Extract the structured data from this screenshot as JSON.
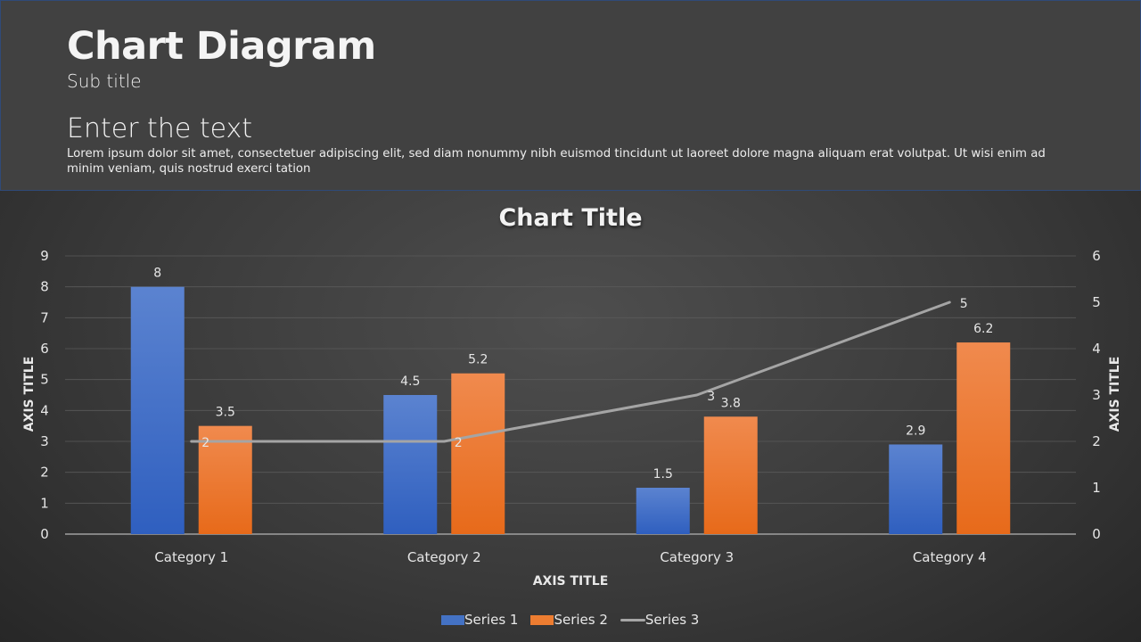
{
  "header": {
    "title": "Chart Diagram",
    "subtitle": "Sub title",
    "heading": "Enter the text",
    "body": "Lorem ipsum dolor sit amet, consectetuer adipiscing elit, sed diam nonummy nibh euismod tincidunt ut laoreet dolore magna aliquam erat volutpat. Ut wisi enim ad minim veniam, quis nostrud exerci tation"
  },
  "colors": {
    "series1": "#4472c4",
    "series2": "#ed7d31",
    "series3": "#a5a5a5",
    "header_bg": "#414141",
    "header_border": "#2f4a78"
  },
  "chart_data": {
    "type": "bar",
    "title": "Chart Title",
    "xlabel": "AXIS TITLE",
    "ylabel": "AXIS TITLE",
    "y2label": "AXIS TITLE",
    "categories": [
      "Category 1",
      "Category 2",
      "Category 3",
      "Category 4"
    ],
    "series": [
      {
        "name": "Series 1",
        "type": "bar",
        "axis": "primary",
        "values": [
          8,
          4.5,
          1.5,
          2.9
        ]
      },
      {
        "name": "Series 2",
        "type": "bar",
        "axis": "primary",
        "values": [
          3.5,
          5.2,
          3.8,
          6.2
        ]
      },
      {
        "name": "Series 3",
        "type": "line",
        "axis": "secondary",
        "values": [
          2,
          2,
          3,
          5
        ]
      }
    ],
    "ylim": [
      0,
      9
    ],
    "yticks": [
      0,
      1,
      2,
      3,
      4,
      5,
      6,
      7,
      8,
      9
    ],
    "y2lim": [
      0,
      6
    ],
    "y2ticks": [
      0,
      1,
      2,
      3,
      4,
      5,
      6
    ],
    "grid": true,
    "legend_position": "bottom"
  }
}
